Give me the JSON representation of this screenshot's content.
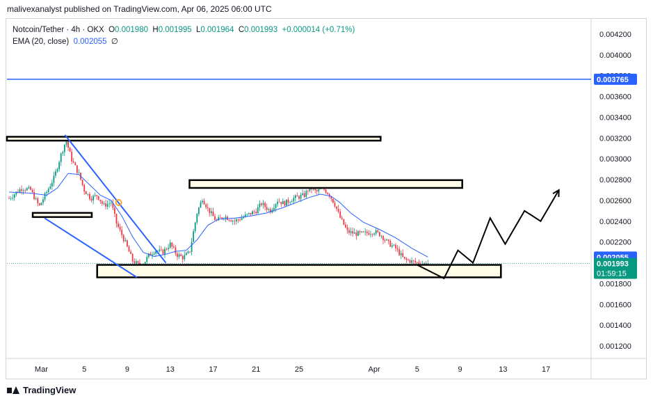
{
  "publisher_line": "malivexanalyst published on TradingView.com, Apr 06, 2025 06:00 UTC",
  "legend": {
    "symbol": "Notcoin/Tether · 4h · OKX",
    "open_label": "O",
    "open": "0.001980",
    "high_label": "H",
    "high": "0.001995",
    "low_label": "L",
    "low": "0.001964",
    "close_label": "C",
    "close": "0.001993",
    "change": "+0.000014 (+0.71%)",
    "ema_label": "EMA (20, close)",
    "ema_value": "0.002055",
    "ema_extra": "∅"
  },
  "footer": {
    "brand": "TradingView",
    "logo_icon": "tradingview-logo-icon"
  },
  "colors": {
    "up": "#089981",
    "down": "#f23645",
    "ema": "#2962ff",
    "hline": "#2962ff",
    "zone_fill": "#fffde7",
    "zone_stroke": "#000000",
    "close_badge": "#089981",
    "ema_badge": "#2962ff",
    "hline_badge": "#2962ff"
  },
  "chart_data": {
    "type": "candlestick",
    "title": "",
    "y_axis": {
      "ticks": [
        "0.004200",
        "0.004000",
        "0.003800",
        "0.003600",
        "0.003400",
        "0.003200",
        "0.003000",
        "0.002800",
        "0.002600",
        "0.002400",
        "0.002200",
        "0.002000",
        "0.001800",
        "0.001600",
        "0.001400",
        "0.001200"
      ],
      "range": [
        0.00108,
        0.00434
      ]
    },
    "x_axis": {
      "ticks": [
        {
          "label": "Mar",
          "day": 1
        },
        {
          "label": "5",
          "day": 5
        },
        {
          "label": "9",
          "day": 9
        },
        {
          "label": "13",
          "day": 13
        },
        {
          "label": "17",
          "day": 17
        },
        {
          "label": "21",
          "day": 21
        },
        {
          "label": "25",
          "day": 25
        },
        {
          "label": "Apr",
          "day": 32
        },
        {
          "label": "5",
          "day": 36
        },
        {
          "label": "9",
          "day": 40
        },
        {
          "label": "13",
          "day": 44
        },
        {
          "label": "17",
          "day": 48
        }
      ],
      "range": [
        -2.2,
        52.2
      ]
    },
    "price_path": [
      {
        "day": -2.0,
        "price": 0.00262
      },
      {
        "day": -0.8,
        "price": 0.00272
      },
      {
        "day": 0.0,
        "price": 0.0027
      },
      {
        "day": 0.8,
        "price": 0.00254
      },
      {
        "day": 1.5,
        "price": 0.00268
      },
      {
        "day": 2.2,
        "price": 0.00282
      },
      {
        "day": 2.8,
        "price": 0.00303
      },
      {
        "day": 3.3,
        "price": 0.00318
      },
      {
        "day": 3.8,
        "price": 0.003
      },
      {
        "day": 4.5,
        "price": 0.00285
      },
      {
        "day": 5.0,
        "price": 0.0027
      },
      {
        "day": 5.6,
        "price": 0.00262
      },
      {
        "day": 6.2,
        "price": 0.00265
      },
      {
        "day": 6.8,
        "price": 0.00255
      },
      {
        "day": 7.5,
        "price": 0.00258
      },
      {
        "day": 8.0,
        "price": 0.00238
      },
      {
        "day": 8.8,
        "price": 0.0022
      },
      {
        "day": 9.5,
        "price": 0.00202
      },
      {
        "day": 10.3,
        "price": 0.00196
      },
      {
        "day": 11.0,
        "price": 0.00207
      },
      {
        "day": 11.6,
        "price": 0.00212
      },
      {
        "day": 12.3,
        "price": 0.0021
      },
      {
        "day": 13.0,
        "price": 0.00218
      },
      {
        "day": 13.6,
        "price": 0.00208
      },
      {
        "day": 14.2,
        "price": 0.00205
      },
      {
        "day": 14.8,
        "price": 0.0021
      },
      {
        "day": 15.5,
        "price": 0.00248
      },
      {
        "day": 16.0,
        "price": 0.00262
      },
      {
        "day": 16.5,
        "price": 0.00252
      },
      {
        "day": 17.3,
        "price": 0.0024
      },
      {
        "day": 18.0,
        "price": 0.00245
      },
      {
        "day": 19.0,
        "price": 0.0024
      },
      {
        "day": 20.0,
        "price": 0.00245
      },
      {
        "day": 21.0,
        "price": 0.0025
      },
      {
        "day": 21.5,
        "price": 0.00257
      },
      {
        "day": 22.3,
        "price": 0.0025
      },
      {
        "day": 23.0,
        "price": 0.0026
      },
      {
        "day": 23.6,
        "price": 0.00257
      },
      {
        "day": 24.5,
        "price": 0.00262
      },
      {
        "day": 25.5,
        "price": 0.00265
      },
      {
        "day": 26.0,
        "price": 0.00273
      },
      {
        "day": 26.6,
        "price": 0.00268
      },
      {
        "day": 27.2,
        "price": 0.00272
      },
      {
        "day": 27.8,
        "price": 0.00266
      },
      {
        "day": 28.3,
        "price": 0.00257
      },
      {
        "day": 28.8,
        "price": 0.00244
      },
      {
        "day": 29.5,
        "price": 0.0023
      },
      {
        "day": 30.2,
        "price": 0.00228
      },
      {
        "day": 31.0,
        "price": 0.00228
      },
      {
        "day": 32.0,
        "price": 0.0023
      },
      {
        "day": 32.6,
        "price": 0.00227
      },
      {
        "day": 33.3,
        "price": 0.00219
      },
      {
        "day": 34.0,
        "price": 0.00214
      },
      {
        "day": 34.8,
        "price": 0.00203
      },
      {
        "day": 35.6,
        "price": 0.00201
      },
      {
        "day": 36.4,
        "price": 0.00199
      },
      {
        "day": 37.0,
        "price": 0.001993
      }
    ],
    "ema_path": [
      {
        "day": -2.0,
        "price": 0.00268
      },
      {
        "day": 0.0,
        "price": 0.00267
      },
      {
        "day": 1.5,
        "price": 0.00265
      },
      {
        "day": 2.5,
        "price": 0.00272
      },
      {
        "day": 3.5,
        "price": 0.00286
      },
      {
        "day": 4.5,
        "price": 0.00285
      },
      {
        "day": 5.5,
        "price": 0.00275
      },
      {
        "day": 6.5,
        "price": 0.00265
      },
      {
        "day": 7.5,
        "price": 0.0026
      },
      {
        "day": 8.5,
        "price": 0.00245
      },
      {
        "day": 9.5,
        "price": 0.00225
      },
      {
        "day": 10.5,
        "price": 0.0021
      },
      {
        "day": 11.5,
        "price": 0.00206
      },
      {
        "day": 12.5,
        "price": 0.00208
      },
      {
        "day": 13.5,
        "price": 0.00211
      },
      {
        "day": 14.5,
        "price": 0.00212
      },
      {
        "day": 15.5,
        "price": 0.00222
      },
      {
        "day": 16.5,
        "price": 0.00236
      },
      {
        "day": 17.5,
        "price": 0.00242
      },
      {
        "day": 19.0,
        "price": 0.00243
      },
      {
        "day": 20.5,
        "price": 0.00245
      },
      {
        "day": 22.0,
        "price": 0.00248
      },
      {
        "day": 23.5,
        "price": 0.00253
      },
      {
        "day": 25.0,
        "price": 0.00259
      },
      {
        "day": 26.0,
        "price": 0.00263
      },
      {
        "day": 27.0,
        "price": 0.00266
      },
      {
        "day": 28.0,
        "price": 0.00264
      },
      {
        "day": 28.8,
        "price": 0.00258
      },
      {
        "day": 29.8,
        "price": 0.00248
      },
      {
        "day": 31.0,
        "price": 0.00239
      },
      {
        "day": 32.5,
        "price": 0.00232
      },
      {
        "day": 34.0,
        "price": 0.00224
      },
      {
        "day": 35.5,
        "price": 0.00214
      },
      {
        "day": 37.0,
        "price": 0.002055
      }
    ],
    "horizontal_line": {
      "price": 0.003765,
      "label": "0.003765"
    },
    "zones": [
      {
        "day_start": -2.2,
        "day_end": 32.6,
        "price_top": 0.003212,
        "price_bottom": 0.003175
      },
      {
        "day_start": 14.8,
        "day_end": 40.2,
        "price_top": 0.002795,
        "price_bottom": 0.00272
      },
      {
        "day_start": 0.2,
        "day_end": 5.7,
        "price_top": 0.00248,
        "price_bottom": 0.00244
      },
      {
        "day_start": 6.2,
        "day_end": 43.8,
        "price_top": 0.00198,
        "price_bottom": 0.00186
      }
    ],
    "falling_channel": [
      {
        "from_day": 3.2,
        "from_price": 0.00323,
        "to_day": 12.6,
        "to_price": 0.002
      },
      {
        "from_day": 1.3,
        "from_price": 0.00243,
        "to_day": 9.9,
        "to_price": 0.00186
      }
    ],
    "marker": {
      "day": 8.2,
      "price": 0.00258
    },
    "projection_path": [
      {
        "day": 36.0,
        "price": 0.00198
      },
      {
        "day": 38.5,
        "price": 0.00185
      },
      {
        "day": 39.8,
        "price": 0.00212
      },
      {
        "day": 41.2,
        "price": 0.002
      },
      {
        "day": 42.8,
        "price": 0.00243
      },
      {
        "day": 44.2,
        "price": 0.00218
      },
      {
        "day": 46.0,
        "price": 0.0025
      },
      {
        "day": 47.5,
        "price": 0.0024
      },
      {
        "day": 49.2,
        "price": 0.0027
      }
    ],
    "price_badges": {
      "ema": "0.002055",
      "close": "0.001993",
      "countdown": "01:59:15"
    }
  }
}
